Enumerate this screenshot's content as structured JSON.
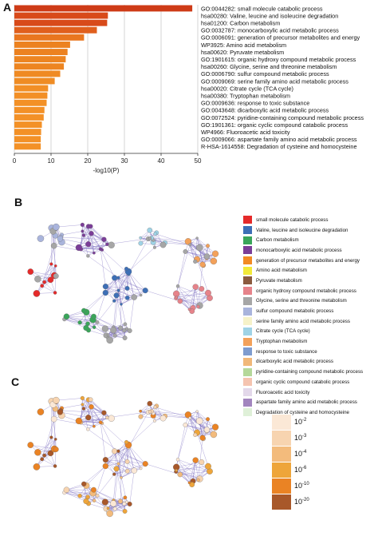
{
  "panels": {
    "a": "A",
    "b": "B",
    "c": "C"
  },
  "chart_data": [
    {
      "type": "bar",
      "orientation": "horizontal",
      "xlabel": "-log10(P)",
      "xticks": [
        0,
        10,
        20,
        30,
        40,
        50
      ],
      "xlim": [
        0,
        50
      ],
      "categories": [
        "GO:0044282: small molecule catabolic process",
        "hsa00280: Valine, leucine and isoleucine degradation",
        "hsa01200: Carbon metabolism",
        "GO:0032787: monocarboxylic acid metabolic process",
        "GO:0006091: generation of precursor metabolites and energy",
        "WP3925: Amino acid metabolism",
        "hsa00620: Pyruvate metabolism",
        "GO:1901615: organic hydroxy compound metabolic process",
        "hsa00260: Glycine, serine and threonine metabolism",
        "GO:0006790: sulfur compound metabolic process",
        "GO:0009069: serine family amino acid metabolic process",
        "hsa00020: Citrate cycle (TCA cycle)",
        "hsa00380: Tryptophan metabolism",
        "GO:0009636: response to toxic substance",
        "GO:0043648: dicarboxylic acid metabolic process",
        "GO:0072524: pyridine-containing compound metabolic process",
        "GO:1901361: organic cyclic compound catabolic process",
        "WP4966: Fluoroacetic acid toxicity",
        "GO:0009066: aspartate family amino acid metabolic process",
        "R-HSA-1614558: Degradation of cysteine and homocysteine"
      ],
      "values": [
        48.5,
        25.5,
        25.3,
        22.5,
        19,
        15.2,
        14.5,
        14,
        13.5,
        12.5,
        11,
        9.2,
        9,
        8.8,
        8.2,
        8,
        7.5,
        7.3,
        7.2,
        7.2
      ],
      "colors": [
        "#ce3b17",
        "#d84a1a",
        "#d84a1a",
        "#e05f1d",
        "#e9761f",
        "#ec8220",
        "#ec8220",
        "#ed8521",
        "#ed8521",
        "#ef8a23",
        "#ef8c24",
        "#f28f26",
        "#f28f26",
        "#f39127",
        "#f39127",
        "#f39127",
        "#f39127",
        "#f39127",
        "#f39127",
        "#f39127"
      ]
    },
    {
      "type": "network",
      "legend": [
        {
          "label": "small molecule catabolic process",
          "color": "#e52a2a"
        },
        {
          "label": "Valine, leucine and isoleucine degradation",
          "color": "#3d6fb6"
        },
        {
          "label": "Carbon metabolism",
          "color": "#3aa55a"
        },
        {
          "label": "monocarboxylic acid metabolic process",
          "color": "#7b3d98"
        },
        {
          "label": "generation of precursor metabolites and energy",
          "color": "#f28a24"
        },
        {
          "label": "Amino acid metabolism",
          "color": "#f2e93a"
        },
        {
          "label": "Pyruvate metabolism",
          "color": "#8b5a3e"
        },
        {
          "label": "organic hydroxy compound metabolic process",
          "color": "#e6838a"
        },
        {
          "label": "Glycine, serine and threonine metabolism",
          "color": "#a6a6a6"
        },
        {
          "label": "sulfur compound metabolic process",
          "color": "#a9b4dc"
        },
        {
          "label": "serine family amino acid metabolic process",
          "color": "#f6f2c9"
        },
        {
          "label": "Citrate cycle (TCA cycle)",
          "color": "#9fd3e6"
        },
        {
          "label": "Tryptophan metabolism",
          "color": "#f3a15a"
        },
        {
          "label": "response to toxic substance",
          "color": "#7e9ccf"
        },
        {
          "label": "dicarboxylic acid metabolic process",
          "color": "#f1b879"
        },
        {
          "label": "pyridine-containing compound metabolic process",
          "color": "#b5d89a"
        },
        {
          "label": "organic cyclic compound catabolic process",
          "color": "#f5c4b0"
        },
        {
          "label": "Fluoroacetic acid toxicity",
          "color": "#e3d8ea"
        },
        {
          "label": "aspartate family amino acid metabolic process",
          "color": "#a285be"
        },
        {
          "label": "Degradation of cysteine and homocysteine",
          "color": "#dff0d8"
        }
      ]
    },
    {
      "type": "network",
      "legend": [
        {
          "exp": "-2",
          "color": "#fbe8d6"
        },
        {
          "exp": "-3",
          "color": "#f7d4b0"
        },
        {
          "exp": "-4",
          "color": "#f3bb7c"
        },
        {
          "exp": "-6",
          "color": "#eea53a"
        },
        {
          "exp": "-10",
          "color": "#ea8324"
        },
        {
          "exp": "-20",
          "color": "#a8582a"
        }
      ],
      "legend_base": "10"
    }
  ]
}
